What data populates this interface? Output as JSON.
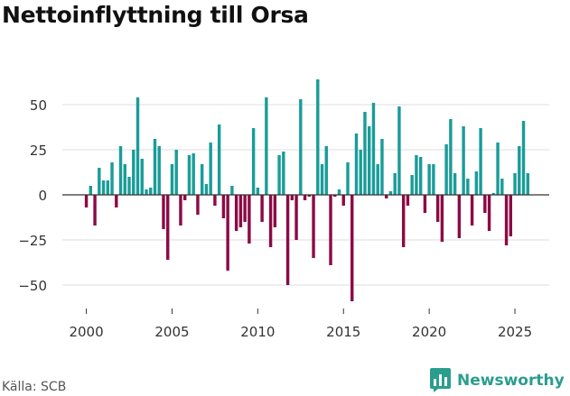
{
  "title": "Nettoinflyttning till Orsa",
  "source": "Källa: SCB",
  "brand": {
    "name": "Newsworthy",
    "icon": "bar-chart-speech-icon",
    "color": "#2a9d8f"
  },
  "colors": {
    "positive": "#1a9c99",
    "negative": "#8c0a45",
    "zero_line": "#333333",
    "grid": "#dddddd",
    "tick_text": "#333333"
  },
  "chart_data": {
    "type": "bar",
    "title": "Nettoinflyttning till Orsa",
    "xlabel": "",
    "ylabel": "",
    "x_ticks": [
      2000,
      2005,
      2010,
      2015,
      2020,
      2025
    ],
    "y_ticks": [
      -50,
      -25,
      0,
      25,
      50
    ],
    "y_tick_labels": [
      "−50",
      "−25",
      "0",
      "25",
      "50"
    ],
    "ylim": [
      -62,
      68
    ],
    "xlim": [
      1998.6,
      2027.0
    ],
    "grid": true,
    "x": [
      2000.0,
      2000.25,
      2000.5,
      2000.75,
      2001.0,
      2001.25,
      2001.5,
      2001.75,
      2002.0,
      2002.25,
      2002.5,
      2002.75,
      2003.0,
      2003.25,
      2003.5,
      2003.75,
      2004.0,
      2004.25,
      2004.5,
      2004.75,
      2005.0,
      2005.25,
      2005.5,
      2005.75,
      2006.0,
      2006.25,
      2006.5,
      2006.75,
      2007.0,
      2007.25,
      2007.5,
      2007.75,
      2008.0,
      2008.25,
      2008.5,
      2008.75,
      2009.0,
      2009.25,
      2009.5,
      2009.75,
      2010.0,
      2010.25,
      2010.5,
      2010.75,
      2011.0,
      2011.25,
      2011.5,
      2011.75,
      2012.0,
      2012.25,
      2012.5,
      2012.75,
      2013.0,
      2013.25,
      2013.5,
      2013.75,
      2014.0,
      2014.25,
      2014.5,
      2014.75,
      2015.0,
      2015.25,
      2015.5,
      2015.75,
      2016.0,
      2016.25,
      2016.5,
      2016.75,
      2017.0,
      2017.25,
      2017.5,
      2017.75,
      2018.0,
      2018.25,
      2018.5,
      2018.75,
      2019.0,
      2019.25,
      2019.5,
      2019.75,
      2020.0,
      2020.25,
      2020.5,
      2020.75,
      2021.0,
      2021.25,
      2021.5,
      2021.75,
      2022.0,
      2022.25,
      2022.5,
      2022.75,
      2023.0,
      2023.25,
      2023.5,
      2023.75,
      2024.0,
      2024.25,
      2024.5,
      2024.75,
      2025.0,
      2025.25,
      2025.5,
      2025.75
    ],
    "values": [
      -7,
      5,
      -17,
      15,
      8,
      8,
      18,
      -7,
      27,
      17,
      10,
      25,
      54,
      20,
      3,
      4,
      31,
      27,
      -19,
      -36,
      17,
      25,
      -17,
      -3,
      22,
      23,
      -11,
      17,
      6,
      29,
      -6,
      39,
      -13,
      -42,
      5,
      -20,
      -18,
      -15,
      -27,
      37,
      4,
      -15,
      54,
      -29,
      -18,
      22,
      24,
      -50,
      -3,
      -25,
      53,
      -3,
      -1,
      -35,
      64,
      17,
      27,
      -39,
      -1,
      3,
      -6,
      18,
      -59,
      34,
      25,
      46,
      38,
      51,
      17,
      31,
      -2,
      2,
      12,
      49,
      -29,
      -6,
      11,
      22,
      21,
      -10,
      17,
      17,
      -15,
      -26,
      28,
      42,
      12,
      -24,
      38,
      9,
      -17,
      13,
      37,
      -10,
      -20,
      1,
      29,
      9,
      -28,
      -23,
      12,
      27,
      41,
      12
    ]
  }
}
